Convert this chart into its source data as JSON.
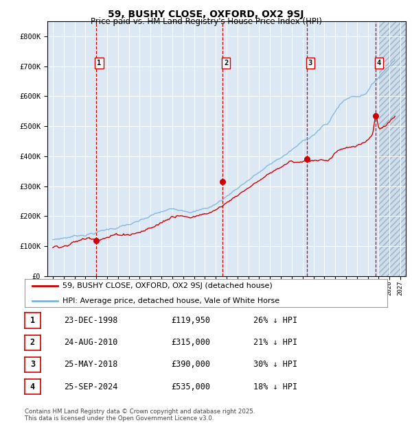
{
  "title": "59, BUSHY CLOSE, OXFORD, OX2 9SJ",
  "subtitle": "Price paid vs. HM Land Registry's House Price Index (HPI)",
  "legend_line1": "59, BUSHY CLOSE, OXFORD, OX2 9SJ (detached house)",
  "legend_line2": "HPI: Average price, detached house, Vale of White Horse",
  "footer": "Contains HM Land Registry data © Crown copyright and database right 2025.\nThis data is licensed under the Open Government Licence v3.0.",
  "transactions": [
    {
      "num": 1,
      "date": "23-DEC-1998",
      "price": 119950,
      "pct": "26% ↓ HPI",
      "year": 1998.97
    },
    {
      "num": 2,
      "date": "24-AUG-2010",
      "price": 315000,
      "pct": "21% ↓ HPI",
      "year": 2010.65
    },
    {
      "num": 3,
      "date": "25-MAY-2018",
      "price": 390000,
      "pct": "30% ↓ HPI",
      "year": 2018.4
    },
    {
      "num": 4,
      "date": "25-SEP-2024",
      "price": 535000,
      "pct": "18% ↓ HPI",
      "year": 2024.73
    }
  ],
  "ylim": [
    0,
    850000
  ],
  "xlim_start": 1994.5,
  "xlim_end": 2027.5,
  "background_color": "#dce9f5",
  "hpi_color": "#7ab4d8",
  "price_color": "#cc0000",
  "grid_color": "#ffffff",
  "vline_color": "#cc0000",
  "hatch_color": "#c0c0c0"
}
